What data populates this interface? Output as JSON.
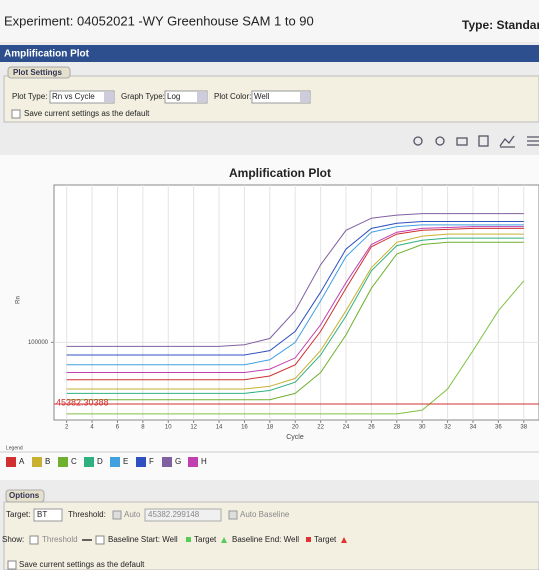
{
  "header": {
    "experiment": "Experiment: 04052021 -WY Greenhouse SAM 1 to 90",
    "type": "Type: Standard"
  },
  "panel_title": "Amplification Plot",
  "plot_settings": {
    "tab": "Plot Settings",
    "plot_type_label": "Plot Type:",
    "plot_type": "Rn vs Cycle",
    "graph_type_label": "Graph Type:",
    "graph_type": "Log",
    "plot_color_label": "Plot Color:",
    "plot_color": "Well",
    "save_default": "Save current settings as the default"
  },
  "chart_data": {
    "type": "line",
    "title": "Amplification Plot",
    "x_label": "Cycle",
    "y_label": "Rn",
    "legend_title": "Legend",
    "log_y": true,
    "grid": true,
    "x": [
      2,
      4,
      6,
      8,
      10,
      12,
      14,
      16,
      18,
      20,
      22,
      24,
      26,
      28,
      30,
      32,
      34,
      36,
      38
    ],
    "xlim": [
      1,
      39.2
    ],
    "xticks": [
      2,
      4,
      6,
      8,
      10,
      12,
      14,
      16,
      18,
      20,
      22,
      24,
      26,
      28,
      30,
      32,
      34,
      36,
      38
    ],
    "ylim": [
      37000,
      750000
    ],
    "yticks": [
      100000
    ],
    "threshold": 45382.30388,
    "threshold_color": "#d03030",
    "series": [
      {
        "name": "A",
        "color": "#d03030",
        "values": [
          62000,
          62000,
          62000,
          62000,
          62000,
          62000,
          62000,
          62000,
          65000,
          75000,
          115000,
          200000,
          340000,
          400000,
          420000,
          425000,
          430000,
          430000,
          430000
        ]
      },
      {
        "name": "B",
        "color": "#c8b030",
        "values": [
          55000,
          55000,
          55000,
          55000,
          55000,
          55000,
          55000,
          55000,
          57000,
          63000,
          90000,
          150000,
          260000,
          360000,
          390000,
          400000,
          400000,
          400000,
          400000
        ]
      },
      {
        "name": "C",
        "color": "#70b030",
        "values": [
          48000,
          48000,
          48000,
          48000,
          48000,
          48000,
          48000,
          48000,
          48000,
          52000,
          68000,
          110000,
          200000,
          310000,
          350000,
          360000,
          360000,
          360000,
          360000
        ]
      },
      {
        "name": "D",
        "color": "#30b080",
        "values": [
          52000,
          52000,
          52000,
          52000,
          52000,
          52000,
          52000,
          52000,
          54000,
          60000,
          85000,
          140000,
          250000,
          345000,
          370000,
          380000,
          380000,
          380000,
          380000
        ]
      },
      {
        "name": "E",
        "color": "#40a0e0",
        "values": [
          75000,
          75000,
          75000,
          75000,
          75000,
          75000,
          75000,
          75000,
          80000,
          100000,
          170000,
          300000,
          410000,
          440000,
          450000,
          450000,
          450000,
          450000,
          450000
        ]
      },
      {
        "name": "F",
        "color": "#3050c0",
        "values": [
          85000,
          85000,
          85000,
          85000,
          85000,
          85000,
          85000,
          85000,
          90000,
          115000,
          190000,
          330000,
          430000,
          460000,
          470000,
          470000,
          470000,
          470000,
          470000
        ]
      },
      {
        "name": "G",
        "color": "#8060a0",
        "values": [
          95000,
          95000,
          95000,
          95000,
          95000,
          95000,
          95000,
          97000,
          105000,
          150000,
          270000,
          420000,
          490000,
          510000,
          520000,
          520000,
          520000,
          520000,
          520000
        ]
      },
      {
        "name": "H",
        "color": "#c040b0",
        "values": [
          68000,
          68000,
          68000,
          68000,
          68000,
          68000,
          68000,
          68000,
          71000,
          82000,
          125000,
          215000,
          350000,
          410000,
          430000,
          435000,
          440000,
          440000,
          440000
        ]
      },
      {
        "color": "#80c040",
        "values": [
          40000,
          40000,
          40000,
          40000,
          40000,
          40000,
          40000,
          40000,
          40000,
          40000,
          40000,
          40000,
          40000,
          40000,
          42000,
          55000,
          90000,
          150000,
          220000
        ]
      }
    ]
  },
  "options": {
    "tab": "Options",
    "target_label": "Target:",
    "target": "BT",
    "threshold_label": "Threshold:",
    "auto": "Auto",
    "threshold_value": "45382.299148",
    "auto_baseline": "Auto Baseline",
    "show_label": "Show:",
    "threshold": "Threshold",
    "baseline_start": "Baseline Start: Well",
    "target1": "Target",
    "baseline_end": "Baseline End: Well",
    "target2": "Target",
    "save_default": "Save current settings as the default"
  }
}
